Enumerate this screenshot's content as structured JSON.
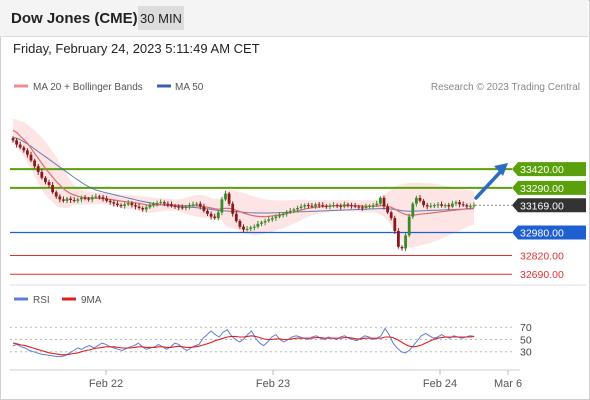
{
  "header": {
    "instrument": "Dow Jones (CME)",
    "timeframe": "30 MIN"
  },
  "datetime": "Friday, February 24, 2023 5:11:49 AM CET",
  "credit": "Research © 2023 Trading Central",
  "chart_data": [
    {
      "type": "candlestick",
      "legend": [
        {
          "name": "MA 20 + Bollinger Bands",
          "color": "#f08c8c"
        },
        {
          "name": "MA 50",
          "color": "#3c5fa8"
        }
      ],
      "ylim": [
        32650,
        33900
      ],
      "x_ticks": [
        "Feb 22",
        "Feb 23",
        "Feb 24",
        "Mar 6"
      ],
      "price_series": {
        "name": "Price",
        "close": [
          33620,
          33590,
          33570,
          33550,
          33520,
          33480,
          33440,
          33400,
          33360,
          33330,
          33310,
          33260,
          33230,
          33210,
          33200,
          33215,
          33205,
          33200,
          33210,
          33220,
          33215,
          33210,
          33225,
          33230,
          33225,
          33215,
          33200,
          33190,
          33180,
          33170,
          33165,
          33175,
          33185,
          33170,
          33160,
          33150,
          33140,
          33155,
          33170,
          33180,
          33185,
          33190,
          33180,
          33175,
          33165,
          33160,
          33155,
          33150,
          33160,
          33170,
          33175,
          33180,
          33160,
          33130,
          33110,
          33090,
          33080,
          33120,
          33210,
          33250,
          33180,
          33110,
          33060,
          33020,
          33000,
          33005,
          33015,
          33020,
          33040,
          33050,
          33060,
          33070,
          33080,
          33090,
          33100,
          33110,
          33120,
          33130,
          33140,
          33150,
          33160,
          33170,
          33165,
          33160,
          33175,
          33170,
          33165,
          33160,
          33165,
          33170,
          33165,
          33160,
          33175,
          33170,
          33165,
          33160,
          33155,
          33150,
          33160,
          33165,
          33170,
          33180,
          33220,
          33160,
          33120,
          33080,
          32990,
          32880,
          32870,
          32960,
          33090,
          33180,
          33220,
          33200,
          33170,
          33160,
          33165,
          33170,
          33175,
          33165,
          33170,
          33160,
          33180,
          33190,
          33175,
          33170,
          33160,
          33165,
          33169
        ]
      },
      "ma20": [
        33690,
        33675,
        33650,
        33625,
        33600,
        33565,
        33530,
        33495,
        33460,
        33425,
        33395,
        33365,
        33335,
        33310,
        33285,
        33265,
        33250,
        33240,
        33232,
        33225,
        33222,
        33220,
        33218,
        33218,
        33217,
        33215,
        33213,
        33210,
        33206,
        33202,
        33198,
        33195,
        33192,
        33190,
        33186,
        33182,
        33177,
        33172,
        33170,
        33170,
        33171,
        33172,
        33173,
        33173,
        33172,
        33170,
        33168,
        33166,
        33165,
        33165,
        33165,
        33165,
        33163,
        33160,
        33155,
        33150,
        33145,
        33142,
        33145,
        33148,
        33147,
        33142,
        33135,
        33125,
        33115,
        33107,
        33100,
        33095,
        33092,
        33090,
        33090,
        33092,
        33095,
        33098,
        33102,
        33106,
        33112,
        33118,
        33124,
        33130,
        33136,
        33142,
        33148,
        33152,
        33155,
        33158,
        33160,
        33162,
        33164,
        33165,
        33166,
        33166,
        33166,
        33166,
        33166,
        33166,
        33165,
        33163,
        33162,
        33162,
        33162,
        33163,
        33166,
        33166,
        33162,
        33155,
        33143,
        33128,
        33115,
        33105,
        33100,
        33100,
        33103,
        33107,
        33110,
        33112,
        33115,
        33118,
        33121,
        33124,
        33127,
        33130,
        33133,
        33136,
        33139,
        33142,
        33145,
        33148,
        33150
      ],
      "bb_upper": [
        33770,
        33765,
        33755,
        33745,
        33730,
        33710,
        33690,
        33665,
        33640,
        33610,
        33575,
        33540,
        33505,
        33465,
        33420,
        33380,
        33340,
        33310,
        33290,
        33280,
        33270,
        33265,
        33260,
        33258,
        33256,
        33254,
        33252,
        33250,
        33248,
        33246,
        33244,
        33242,
        33240,
        33238,
        33236,
        33233,
        33230,
        33228,
        33225,
        33222,
        33220,
        33218,
        33216,
        33214,
        33212,
        33210,
        33210,
        33212,
        33220,
        33230,
        33235,
        33240,
        33240,
        33238,
        33230,
        33220,
        33215,
        33215,
        33225,
        33270,
        33280,
        33275,
        33270,
        33262,
        33255,
        33245,
        33237,
        33230,
        33222,
        33215,
        33210,
        33207,
        33205,
        33203,
        33202,
        33202,
        33203,
        33205,
        33206,
        33207,
        33207,
        33207,
        33206,
        33205,
        33205,
        33205,
        33205,
        33205,
        33205,
        33205,
        33205,
        33205,
        33205,
        33205,
        33205,
        33205,
        33205,
        33205,
        33205,
        33205,
        33205,
        33210,
        33230,
        33240,
        33260,
        33280,
        33300,
        33310,
        33315,
        33320,
        33325,
        33325,
        33325,
        33324,
        33323,
        33322,
        33320,
        33318,
        33315,
        33310,
        33305,
        33300,
        33295,
        33290,
        33285,
        33280,
        33275,
        33270,
        33265
      ],
      "bb_lower": [
        33610,
        33585,
        33545,
        33505,
        33470,
        33420,
        33370,
        33325,
        33280,
        33240,
        33215,
        33190,
        33165,
        33155,
        33150,
        33150,
        33160,
        33170,
        33174,
        33170,
        33174,
        33175,
        33176,
        33178,
        33178,
        33176,
        33174,
        33170,
        33164,
        33158,
        33152,
        33148,
        33144,
        33142,
        33136,
        33131,
        33124,
        33116,
        33115,
        33118,
        33122,
        33126,
        33130,
        33132,
        33132,
        33130,
        33126,
        33120,
        33110,
        33100,
        33095,
        33090,
        33086,
        33082,
        33080,
        33080,
        33075,
        33069,
        33065,
        33026,
        33014,
        33009,
        33000,
        32988,
        32975,
        32969,
        32963,
        32960,
        32962,
        32965,
        32970,
        32977,
        32985,
        32993,
        33002,
        33010,
        33021,
        33031,
        33042,
        33053,
        33065,
        33077,
        33090,
        33099,
        33105,
        33111,
        33115,
        33119,
        33123,
        33125,
        33127,
        33127,
        33127,
        33127,
        33127,
        33127,
        33125,
        33121,
        33119,
        33119,
        33119,
        33116,
        33102,
        33092,
        33064,
        33030,
        32986,
        32946,
        32915,
        32890,
        32875,
        32875,
        32881,
        32890,
        32897,
        32902,
        32910,
        32918,
        32927,
        32938,
        32949,
        32960,
        32971,
        32982,
        32993,
        33004,
        33015,
        33026,
        33035
      ],
      "ma50": [
        33640,
        33635,
        33625,
        33610,
        33595,
        33578,
        33560,
        33542,
        33524,
        33506,
        33488,
        33470,
        33452,
        33434,
        33416,
        33398,
        33380,
        33362,
        33345,
        33328,
        33312,
        33298,
        33286,
        33276,
        33268,
        33261,
        33255,
        33249,
        33243,
        33237,
        33231,
        33225,
        33219,
        33213,
        33207,
        33201,
        33196,
        33191,
        33186,
        33181,
        33177,
        33173,
        33170,
        33167,
        33164,
        33162,
        33160,
        33158,
        33156,
        33155,
        33154,
        33152,
        33150,
        33147,
        33144,
        33140,
        33136,
        33133,
        33131,
        33130,
        33128,
        33126,
        33124,
        33122,
        33120,
        33118,
        33117,
        33116,
        33115,
        33115,
        33115,
        33115,
        33116,
        33117,
        33118,
        33119,
        33120,
        33121,
        33122,
        33123,
        33124,
        33125,
        33126,
        33127,
        33128,
        33129,
        33130,
        33131,
        33132,
        33133,
        33134,
        33135,
        33136,
        33137,
        33138,
        33139,
        33140,
        33141,
        33142,
        33143,
        33144,
        33145,
        33146,
        33146,
        33145,
        33143,
        33140,
        33136,
        33132,
        33129,
        33128,
        33128,
        33129,
        33130,
        33131,
        33132,
        33133,
        33134,
        33135,
        33136,
        33137,
        33138,
        33139,
        33140,
        33141,
        33142,
        33143,
        33144,
        33145
      ],
      "levels": [
        {
          "value": 33420,
          "label": "33420.00",
          "kind": "resistance",
          "color": "#5aa00a"
        },
        {
          "value": 33290,
          "label": "33290.00",
          "kind": "resistance",
          "color": "#5aa00a"
        },
        {
          "value": 33169,
          "label": "33169.00",
          "kind": "last-price",
          "color": "#333333"
        },
        {
          "value": 32980,
          "label": "32980.00",
          "kind": "pivot",
          "color": "#1f5fd0"
        },
        {
          "value": 32820,
          "label": "32820.00",
          "kind": "support",
          "color": "#e03030"
        },
        {
          "value": 32690,
          "label": "32690.00",
          "kind": "support",
          "color": "#e03030"
        }
      ],
      "arrow": {
        "direction": "up",
        "color": "#2d6cc0"
      }
    },
    {
      "type": "line",
      "legend": [
        {
          "name": "RSI",
          "color": "#5b7fd6"
        },
        {
          "name": "9MA",
          "color": "#e02020"
        }
      ],
      "ylim": [
        5,
        90
      ],
      "y_ticks": [
        "70",
        "50",
        "30"
      ],
      "series": [
        {
          "name": "RSI",
          "values": [
            40,
            42,
            38,
            36,
            32,
            30,
            28,
            26,
            25,
            24,
            23,
            22,
            22,
            24,
            28,
            32,
            36,
            34,
            38,
            40,
            36,
            40,
            44,
            42,
            38,
            36,
            34,
            32,
            35,
            38,
            40,
            44,
            38,
            34,
            36,
            38,
            42,
            38,
            34,
            38,
            44,
            42,
            36,
            32,
            36,
            40,
            42,
            52,
            58,
            64,
            58,
            54,
            62,
            66,
            56,
            50,
            46,
            50,
            58,
            64,
            52,
            44,
            40,
            46,
            54,
            58,
            50,
            46,
            50,
            54,
            56,
            54,
            52,
            50,
            54,
            56,
            52,
            50,
            54,
            52,
            50,
            54,
            56,
            52,
            50,
            48,
            52,
            56,
            54,
            50,
            52,
            56,
            68,
            58,
            44,
            36,
            30,
            28,
            32,
            40,
            48,
            56,
            60,
            56,
            52,
            54,
            58,
            54,
            52,
            56,
            54,
            52,
            54,
            56,
            55
          ]
        },
        {
          "name": "9MA",
          "values": [
            44,
            43,
            41,
            40,
            38,
            36,
            34,
            32,
            30,
            28,
            27,
            26,
            25,
            25,
            26,
            27,
            28,
            30,
            32,
            33,
            35,
            36,
            37,
            38,
            38,
            38,
            37,
            36,
            36,
            36,
            37,
            38,
            38,
            37,
            37,
            37,
            38,
            38,
            37,
            37,
            38,
            39,
            38,
            37,
            37,
            38,
            39,
            41,
            43,
            45,
            48,
            50,
            52,
            54,
            55,
            55,
            54,
            54,
            55,
            56,
            55,
            53,
            51,
            50,
            50,
            51,
            51,
            50,
            50,
            51,
            52,
            52,
            52,
            52,
            52,
            53,
            53,
            52,
            52,
            52,
            52,
            52,
            53,
            53,
            52,
            51,
            51,
            52,
            52,
            52,
            52,
            52,
            54,
            54,
            53,
            50,
            46,
            42,
            39,
            38,
            39,
            41,
            44,
            47,
            50,
            52,
            53,
            54,
            54,
            54,
            54,
            54,
            54,
            54,
            55
          ]
        }
      ]
    }
  ]
}
